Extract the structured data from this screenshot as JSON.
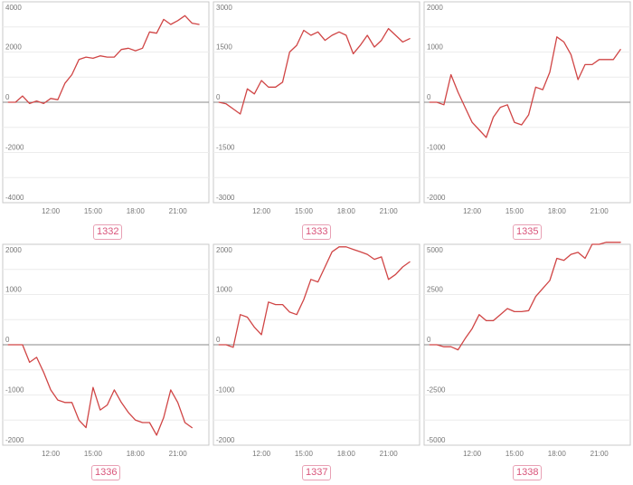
{
  "accent_color": "#d04545",
  "chart_data": [
    {
      "type": "line",
      "label": "1332",
      "x": [
        9.0,
        9.5,
        10.0,
        10.5,
        11.0,
        11.5,
        12.0,
        12.5,
        13.0,
        13.5,
        14.0,
        14.5,
        15.0,
        15.5,
        16.0,
        16.5,
        17.0,
        17.5,
        18.0,
        18.5,
        19.0,
        19.5,
        20.0,
        20.5,
        21.0,
        21.5,
        22.0,
        22.5
      ],
      "y": [
        0,
        0,
        250,
        -50,
        50,
        -50,
        150,
        100,
        750,
        1100,
        1700,
        1800,
        1750,
        1850,
        1800,
        1800,
        2100,
        2150,
        2050,
        2150,
        2800,
        2750,
        3300,
        3100,
        3250,
        3450,
        3150,
        3100
      ],
      "ylim": [
        -4000,
        4000
      ],
      "yticks": [
        4000,
        2000,
        0,
        -2000,
        -4000
      ],
      "xticks": [
        12,
        15,
        18,
        21
      ],
      "xtick_labels": [
        "12:00",
        "15:00",
        "18:00",
        "21:00"
      ]
    },
    {
      "type": "line",
      "label": "1333",
      "x": [
        9.0,
        9.5,
        10.0,
        10.5,
        11.0,
        11.5,
        12.0,
        12.5,
        13.0,
        13.5,
        14.0,
        14.5,
        15.0,
        15.5,
        16.0,
        16.5,
        17.0,
        17.5,
        18.0,
        18.5,
        19.0,
        19.5,
        20.0,
        20.5,
        21.0,
        21.5,
        22.0,
        22.5
      ],
      "y": [
        0,
        -50,
        -200,
        -350,
        400,
        250,
        650,
        450,
        450,
        600,
        1500,
        1700,
        2150,
        2000,
        2100,
        1850,
        2000,
        2100,
        2000,
        1450,
        1700,
        2000,
        1650,
        1850,
        2200,
        2000,
        1800,
        1900
      ],
      "ylim": [
        -3000,
        3000
      ],
      "yticks": [
        3000,
        1500,
        0,
        -1500,
        -3000
      ],
      "xticks": [
        12,
        15,
        18,
        21
      ],
      "xtick_labels": [
        "12:00",
        "15:00",
        "18:00",
        "21:00"
      ]
    },
    {
      "type": "line",
      "label": "1335",
      "x": [
        9.0,
        9.5,
        10.0,
        10.5,
        11.0,
        11.5,
        12.0,
        12.5,
        13.0,
        13.5,
        14.0,
        14.5,
        15.0,
        15.5,
        16.0,
        16.5,
        17.0,
        17.5,
        18.0,
        18.5,
        19.0,
        19.5,
        20.0,
        20.5,
        21.0,
        21.5,
        22.0,
        22.5
      ],
      "y": [
        0,
        0,
        -50,
        550,
        200,
        -100,
        -400,
        -550,
        -700,
        -300,
        -100,
        -50,
        -400,
        -450,
        -250,
        300,
        250,
        600,
        1300,
        1200,
        950,
        450,
        750,
        750,
        850,
        850,
        850,
        1050
      ],
      "ylim": [
        -2000,
        2000
      ],
      "yticks": [
        2000,
        1000,
        0,
        -1000,
        -2000
      ],
      "xticks": [
        12,
        15,
        18,
        21
      ],
      "xtick_labels": [
        "12:00",
        "15:00",
        "18:00",
        "21:00"
      ]
    },
    {
      "type": "line",
      "label": "1336",
      "x": [
        9.0,
        9.5,
        10.0,
        10.5,
        11.0,
        11.5,
        12.0,
        12.5,
        13.0,
        13.5,
        14.0,
        14.5,
        15.0,
        15.5,
        16.0,
        16.5,
        17.0,
        17.5,
        18.0,
        18.5,
        19.0,
        19.5,
        20.0,
        20.5,
        21.0,
        21.5,
        22.0
      ],
      "y": [
        0,
        0,
        0,
        -350,
        -250,
        -550,
        -900,
        -1100,
        -1150,
        -1150,
        -1500,
        -1650,
        -850,
        -1300,
        -1200,
        -900,
        -1150,
        -1350,
        -1500,
        -1550,
        -1550,
        -1800,
        -1450,
        -900,
        -1150,
        -1550,
        -1650
      ],
      "ylim": [
        -2000,
        2000
      ],
      "yticks": [
        2000,
        1000,
        0,
        -1000,
        -2000
      ],
      "xticks": [
        12,
        15,
        18,
        21
      ],
      "xtick_labels": [
        "12:00",
        "15:00",
        "18:00",
        "21:00"
      ]
    },
    {
      "type": "line",
      "label": "1337",
      "x": [
        9.0,
        9.5,
        10.0,
        10.5,
        11.0,
        11.5,
        12.0,
        12.5,
        13.0,
        13.5,
        14.0,
        14.5,
        15.0,
        15.5,
        16.0,
        16.5,
        17.0,
        17.5,
        18.0,
        18.5,
        19.0,
        19.5,
        20.0,
        20.5,
        21.0,
        21.5,
        22.0,
        22.5
      ],
      "y": [
        0,
        0,
        -50,
        600,
        550,
        350,
        200,
        850,
        800,
        800,
        650,
        600,
        900,
        1300,
        1250,
        1550,
        1850,
        1950,
        1950,
        1900,
        1850,
        1800,
        1700,
        1750,
        1300,
        1400,
        1550,
        1650
      ],
      "ylim": [
        -2000,
        2000
      ],
      "yticks": [
        2000,
        1000,
        0,
        -1000,
        -2000
      ],
      "xticks": [
        12,
        15,
        18,
        21
      ],
      "xtick_labels": [
        "12:00",
        "15:00",
        "18:00",
        "21:00"
      ]
    },
    {
      "type": "line",
      "label": "1338",
      "x": [
        9.0,
        9.5,
        10.0,
        10.5,
        11.0,
        11.5,
        12.0,
        12.5,
        13.0,
        13.5,
        14.0,
        14.5,
        15.0,
        15.5,
        16.0,
        16.5,
        17.0,
        17.5,
        18.0,
        18.5,
        19.0,
        19.5,
        20.0,
        20.5,
        21.0,
        21.5,
        22.0,
        22.5
      ],
      "y": [
        0,
        0,
        -100,
        -100,
        -250,
        300,
        800,
        1500,
        1200,
        1200,
        1500,
        1800,
        1650,
        1650,
        1700,
        2400,
        2800,
        3200,
        4300,
        4200,
        4500,
        4600,
        4300,
        5000,
        5000,
        5100,
        5100,
        5100
      ],
      "ylim": [
        -5000,
        5000
      ],
      "yticks": [
        5000,
        2500,
        0,
        -2500,
        -5000
      ],
      "xticks": [
        12,
        15,
        18,
        21
      ],
      "xtick_labels": [
        "12:00",
        "15:00",
        "18:00",
        "21:00"
      ]
    }
  ]
}
